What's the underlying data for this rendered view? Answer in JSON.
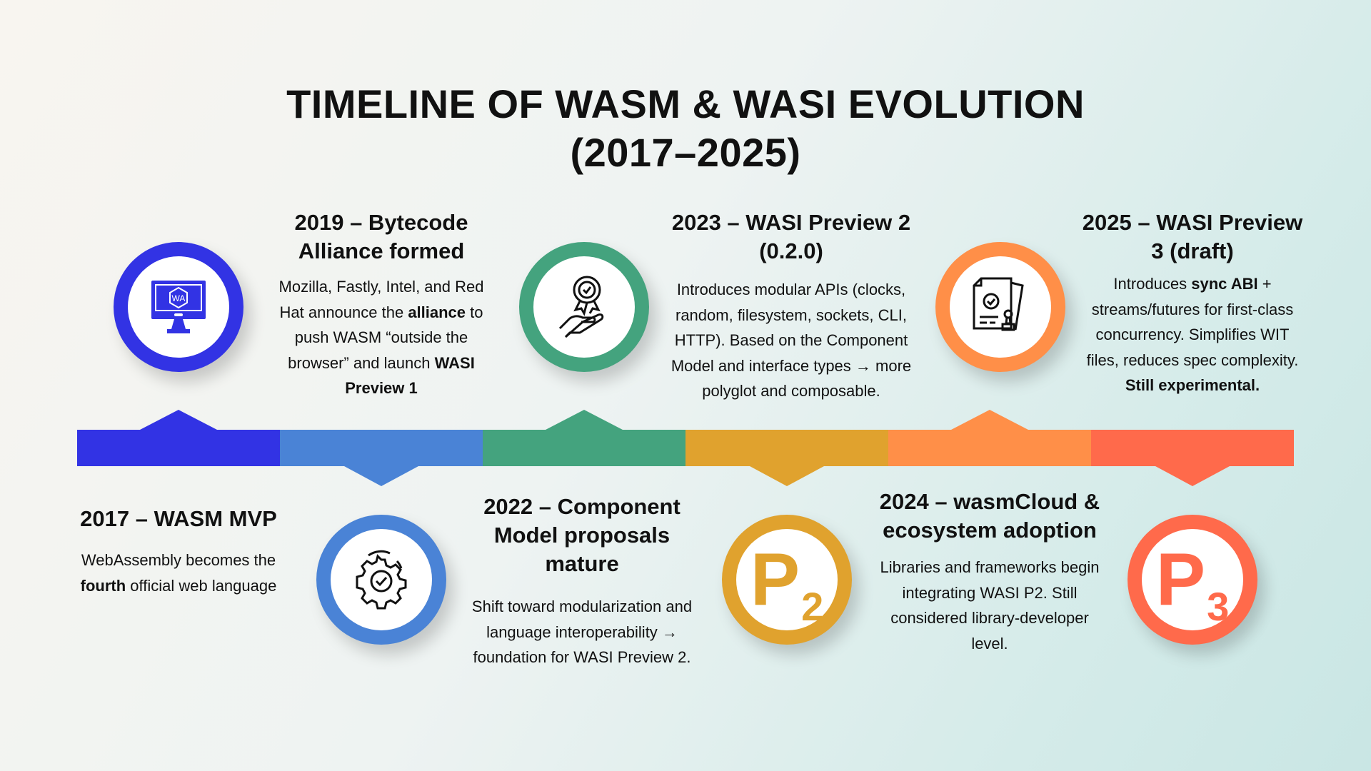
{
  "title": {
    "line1": "TIMELINE OF WASM & WASI EVOLUTION",
    "line2": "(2017–2025)"
  },
  "colors": {
    "2017": "#3233E4",
    "2019": "#4A83D6",
    "2022": "#44A37E",
    "2023": "#E0A22E",
    "2024": "#FF8F48",
    "2025": "#FF6A4B"
  },
  "events": [
    {
      "heading": "2017 – WASM MVP",
      "body": [
        "WebAssembly becomes the ",
        "fourth",
        " official web language"
      ],
      "icon": "monitor-wa-icon"
    },
    {
      "heading": "2019 – Bytecode Alliance formed",
      "body": [
        "Mozilla, Fastly, Intel, and Red Hat announce the ",
        "alliance",
        " to push WASM “outside the browser” and launch ",
        "WASI Preview 1"
      ],
      "icon": "gear-check-icon"
    },
    {
      "heading": "2022 – Component Model proposals mature",
      "body": [
        "Shift toward modularization and language interoperability → foundation for WASI Preview 2."
      ],
      "icon": "award-hand-icon"
    },
    {
      "heading": "2023 – WASI Preview 2 (0.2.0)",
      "body": [
        "Introduces modular APIs (clocks, random, filesystem, sockets, CLI, HTTP). Based on the Component Model and interface types → more polyglot and composable."
      ],
      "icon": "p2-icon"
    },
    {
      "heading": "2024 – wasmCloud & ecosystem adoption",
      "body": [
        "Libraries and frameworks begin integrating WASI P2. Still considered library-developer level."
      ],
      "icon": "document-stamp-icon"
    },
    {
      "heading": "2025 – WASI Preview 3 (draft)",
      "body": [
        "Introduces ",
        "sync ABI",
        " + streams/futures for first-class concurrency. Simplifies WIT files, reduces spec complexity. ",
        "Still experimental."
      ],
      "icon": "p3-icon"
    }
  ],
  "glyphs": {
    "p2": {
      "letter": "P",
      "sub": "2"
    },
    "p3": {
      "letter": "P",
      "sub": "3"
    },
    "wa": "WA"
  }
}
